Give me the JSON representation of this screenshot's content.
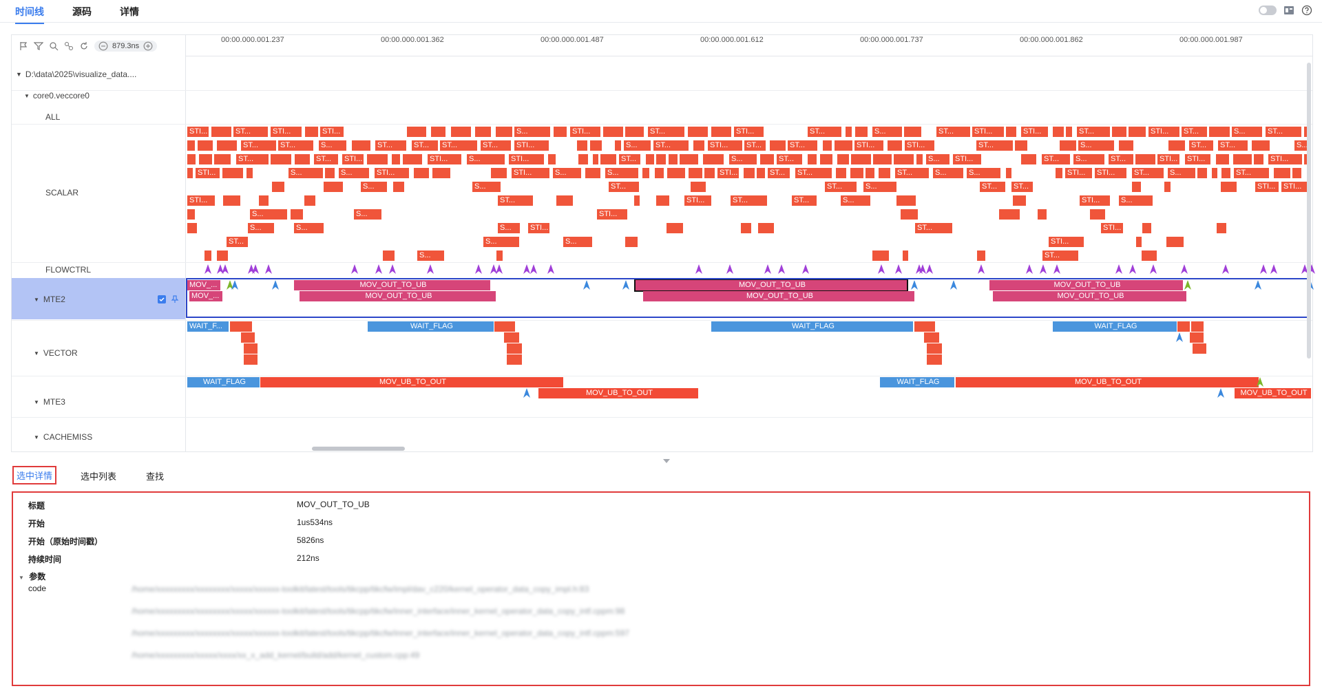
{
  "top_tabs": [
    {
      "label": "时间线",
      "active": true
    },
    {
      "label": "源码",
      "active": false
    },
    {
      "label": "详情",
      "active": false
    }
  ],
  "toolbar": {
    "zoom_value": "879.3ns"
  },
  "ruler": {
    "ticks": [
      "00:00.000.001.237",
      "00:00.000.001.362",
      "00:00.000.001.487",
      "00:00.000.001.612",
      "00:00.000.001.737",
      "00:00.000.001.862",
      "00:00.000.001.987"
    ]
  },
  "tree": {
    "root": "D:\\data\\2025\\visualize_data....",
    "core": "core0.veccore0",
    "rows": {
      "all": "ALL",
      "scalar": "SCALAR",
      "flowctrl": "FLOWCTRL",
      "mte2": "MTE2",
      "vector": "VECTOR",
      "mte3": "MTE3",
      "cachemiss": "CACHEMISS"
    }
  },
  "colors": {
    "scalar": "#f0553a",
    "mte2": "#d64579",
    "wait": "#4a95dd",
    "mte3": "#f24a35",
    "flow": "#a03fd8",
    "marker_blue": "#3b88dd",
    "marker_green": "#7db62a",
    "selection": "#2a45c8",
    "highlight": "#e03a3a",
    "accent": "#3b7ded"
  },
  "tracks": {
    "scalar_labels": [
      "STI...",
      "ST...",
      "S..."
    ],
    "mte2": [
      {
        "label": "MOV_...",
        "row": 0
      },
      {
        "label": "MOV_...",
        "row": 1
      },
      {
        "label": "MOV_OUT_TO_UB",
        "row": 0
      },
      {
        "label": "MOV_OUT_TO_UB",
        "row": 1
      },
      {
        "label": "MOV_OUT_TO_UB",
        "row": 0,
        "selected": true
      },
      {
        "label": "MOV_OUT_TO_UB",
        "row": 1
      },
      {
        "label": "MOV_OUT_TO_UB",
        "row": 0
      },
      {
        "label": "MOV_OUT_TO_UB",
        "row": 1
      }
    ],
    "vector": [
      {
        "label": "WAIT_F..."
      },
      {
        "label": "WAIT_FLAG"
      },
      {
        "label": "WAIT_FLAG"
      },
      {
        "label": "WAIT_FLAG"
      }
    ],
    "mte3": [
      {
        "label": "WAIT_FLAG"
      },
      {
        "label": "MOV_UB_TO_OUT"
      },
      {
        "label": "MOV_UB_TO_OUT"
      },
      {
        "label": "WAIT_FLAG"
      },
      {
        "label": "MOV_UB_TO_OUT"
      },
      {
        "label": "MOV_UB_TO_OUT"
      }
    ]
  },
  "bottom_tabs": [
    {
      "label": "选中详情",
      "active": true
    },
    {
      "label": "选中列表",
      "active": false
    },
    {
      "label": "查找",
      "active": false
    }
  ],
  "details": {
    "title_key": "标题",
    "title_val": "MOV_OUT_TO_UB",
    "start_key": "开始",
    "start_val": "1us534ns",
    "raw_key": "开始（原始时间戳）",
    "raw_val": "5826ns",
    "dur_key": "持续时间",
    "dur_val": "212ns",
    "params_key": "参数",
    "code_key": "code",
    "code_lines": [
      "/home/xxxxxxxxx/xxxxxxxx/xxxxx/xxxxxx-toolkit/latest/tools/tikcpp/tikcfw/impl/dav_c220/kernel_operator_data_copy_impl.h:83",
      "/home/xxxxxxxxx/xxxxxxxx/xxxxx/xxxxxx-toolkit/latest/tools/tikcpp/tikcfw/inner_interface/inner_kernel_operator_data_copy_intf.cppm:98",
      "/home/xxxxxxxxx/xxxxxxxx/xxxxx/xxxxxx-toolkit/latest/tools/tikcpp/tikcfw/inner_interface/inner_kernel_operator_data_copy_intf.cppm:597",
      "/home/xxxxxxxxx/xxxxx/xxxx/xx_x_add_kernel/build/add/kernel_custom.cpp:49"
    ]
  }
}
